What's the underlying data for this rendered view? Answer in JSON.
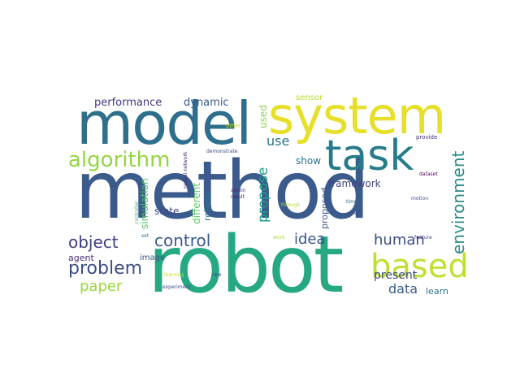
{
  "words": [
    {
      "text": "method",
      "color": "#3b5b8c"
    },
    {
      "text": "robot",
      "color": "#26a882"
    },
    {
      "text": "model",
      "color": "#2f6f8e"
    },
    {
      "text": "system",
      "color": "#e8df2a"
    },
    {
      "text": "task",
      "color": "#277c8c"
    },
    {
      "text": "based",
      "color": "#bde131"
    },
    {
      "text": "algorithm",
      "color": "#94d640"
    },
    {
      "text": "environment",
      "color": "#2a8c8a"
    },
    {
      "text": "problem",
      "color": "#3d4e88"
    },
    {
      "text": "control",
      "color": "#3a5a8c"
    },
    {
      "text": "object",
      "color": "#3e3f7f"
    },
    {
      "text": "human",
      "color": "#3d4e88"
    },
    {
      "text": "idea",
      "color": "#3c548b"
    },
    {
      "text": "paper",
      "color": "#9ad93a"
    },
    {
      "text": "data",
      "color": "#3b5b8c"
    },
    {
      "text": "propose",
      "color": "#1fa187"
    },
    {
      "text": "performance",
      "color": "#453781"
    },
    {
      "text": "dynamic",
      "color": "#38598c"
    },
    {
      "text": "present",
      "color": "#3e4a89"
    },
    {
      "text": "use",
      "color": "#2c738e"
    },
    {
      "text": "used",
      "color": "#8ad546"
    },
    {
      "text": "framework",
      "color": "#40457f"
    },
    {
      "text": "show",
      "color": "#2c728e"
    },
    {
      "text": "sensor",
      "color": "#b5de2b"
    },
    {
      "text": "simulation",
      "color": "#50c46a"
    },
    {
      "text": "state",
      "color": "#3f4889"
    },
    {
      "text": "agent",
      "color": "#472d7b"
    },
    {
      "text": "image",
      "color": "#3b528b"
    },
    {
      "text": "different",
      "color": "#5ec962"
    },
    {
      "text": "robotic",
      "color": "#2a788e"
    },
    {
      "text": "proposed",
      "color": "#3b528b"
    },
    {
      "text": "learn",
      "color": "#2c728e"
    },
    {
      "text": "provide",
      "color": "#472d7b"
    },
    {
      "text": "other",
      "color": "#c7e020"
    },
    {
      "text": "neural network",
      "color": "#482878"
    },
    {
      "text": "demonstrate",
      "color": "#3e4989"
    },
    {
      "text": "action",
      "color": "#482475"
    },
    {
      "text": "result",
      "color": "#481f70"
    },
    {
      "text": "through",
      "color": "#b4de2c"
    },
    {
      "text": "dataset",
      "color": "#440154"
    },
    {
      "text": "time",
      "color": "#31688e"
    },
    {
      "text": "novel",
      "color": "#3e4a89"
    },
    {
      "text": "motion",
      "color": "#3b528b"
    },
    {
      "text": "controller",
      "color": "#35b779"
    },
    {
      "text": "set",
      "color": "#2d708e"
    },
    {
      "text": "work",
      "color": "#a5db36"
    },
    {
      "text": "feature",
      "color": "#443983"
    },
    {
      "text": "learning",
      "color": "#c2df23"
    },
    {
      "text": "new",
      "color": "#414487"
    },
    {
      "text": "experiment",
      "color": "#3e4a89"
    }
  ]
}
